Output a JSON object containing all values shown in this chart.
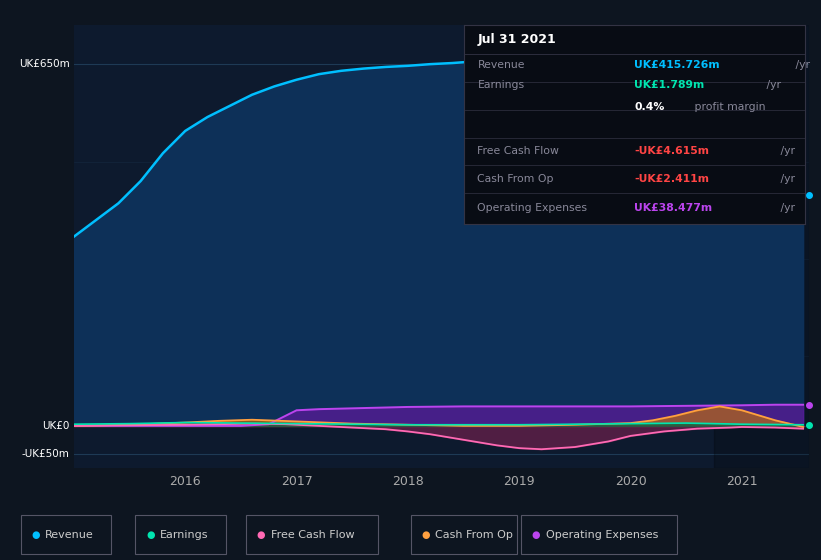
{
  "bg_color": "#0d1520",
  "plot_bg_color": "#0d1a2e",
  "revenue_color": "#00bfff",
  "revenue_fill": "#0d2a45",
  "earnings_color": "#00e5b0",
  "fcf_color": "#ff69b4",
  "cfo_color": "#ffa040",
  "oe_color": "#bb44ee",
  "revenue": {
    "x": [
      2015.0,
      2015.2,
      2015.4,
      2015.6,
      2015.8,
      2016.0,
      2016.2,
      2016.4,
      2016.6,
      2016.8,
      2017.0,
      2017.2,
      2017.4,
      2017.6,
      2017.8,
      2018.0,
      2018.2,
      2018.4,
      2018.6,
      2018.8,
      2019.0,
      2019.2,
      2019.4,
      2019.6,
      2019.8,
      2020.0,
      2020.2,
      2020.4,
      2020.6,
      2020.8,
      2021.0,
      2021.2,
      2021.4,
      2021.55
    ],
    "y": [
      340,
      370,
      400,
      440,
      490,
      530,
      555,
      575,
      595,
      610,
      622,
      632,
      638,
      642,
      645,
      647,
      650,
      652,
      655,
      658,
      660,
      658,
      655,
      650,
      645,
      638,
      620,
      595,
      555,
      505,
      450,
      415,
      415,
      415
    ]
  },
  "earnings": {
    "x": [
      2015.0,
      2015.5,
      2016.0,
      2016.5,
      2017.0,
      2017.5,
      2018.0,
      2018.5,
      2019.0,
      2019.5,
      2020.0,
      2020.5,
      2021.0,
      2021.55
    ],
    "y": [
      3,
      4,
      6,
      5,
      4,
      3,
      2,
      2,
      2,
      3,
      4,
      5,
      3,
      2
    ]
  },
  "free_cash_flow": {
    "x": [
      2015.0,
      2015.5,
      2016.0,
      2016.3,
      2016.6,
      2016.9,
      2017.0,
      2017.2,
      2017.5,
      2017.8,
      2018.0,
      2018.2,
      2018.5,
      2018.8,
      2019.0,
      2019.2,
      2019.5,
      2019.8,
      2020.0,
      2020.3,
      2020.6,
      2020.9,
      2021.0,
      2021.3,
      2021.55
    ],
    "y": [
      0,
      1,
      2,
      3,
      4,
      3,
      2,
      0,
      -3,
      -6,
      -10,
      -15,
      -25,
      -35,
      -40,
      -42,
      -38,
      -28,
      -18,
      -10,
      -5,
      -3,
      -2,
      -3,
      -5
    ]
  },
  "cash_from_op": {
    "x": [
      2015.0,
      2015.5,
      2016.0,
      2016.3,
      2016.6,
      2017.0,
      2017.5,
      2018.0,
      2018.5,
      2019.0,
      2019.5,
      2020.0,
      2020.2,
      2020.4,
      2020.6,
      2020.8,
      2021.0,
      2021.3,
      2021.55
    ],
    "y": [
      0,
      2,
      6,
      9,
      11,
      8,
      4,
      2,
      0,
      0,
      2,
      5,
      10,
      18,
      28,
      35,
      28,
      10,
      -2
    ]
  },
  "operating_expenses": {
    "x": [
      2015.0,
      2015.5,
      2016.0,
      2016.5,
      2016.75,
      2017.0,
      2017.2,
      2017.4,
      2017.6,
      2017.8,
      2018.0,
      2018.5,
      2019.0,
      2019.5,
      2020.0,
      2020.5,
      2021.0,
      2021.3,
      2021.55
    ],
    "y": [
      0,
      0,
      0,
      0,
      3,
      28,
      30,
      31,
      32,
      33,
      34,
      35,
      35,
      35,
      35,
      36,
      37,
      38,
      38
    ]
  },
  "xmin": 2015.0,
  "xmax": 2021.6,
  "ymin": -75,
  "ymax": 720,
  "shade_start": 2020.75,
  "xtick_years": [
    2016,
    2017,
    2018,
    2019,
    2020,
    2021
  ],
  "ytick_vals": [
    650,
    0,
    -50
  ],
  "ytick_labels": [
    "UK£650m",
    "UK£0",
    "-UK£50m"
  ],
  "legend_items": [
    {
      "label": "Revenue",
      "color": "#00bfff"
    },
    {
      "label": "Earnings",
      "color": "#00e5b0"
    },
    {
      "label": "Free Cash Flow",
      "color": "#ff69b4"
    },
    {
      "label": "Cash From Op",
      "color": "#ffa040"
    },
    {
      "label": "Operating Expenses",
      "color": "#bb44ee"
    }
  ],
  "tooltip_bg": "#080c14",
  "tooltip_border": "#333344",
  "tooltip_title": "Jul 31 2021",
  "tooltip_rows": [
    {
      "label": "Revenue",
      "value": "UK£415.726m",
      "suffix": " /yr",
      "value_color": "#00bfff",
      "label_color": "#888899"
    },
    {
      "label": "Earnings",
      "value": "UK£1.789m",
      "suffix": " /yr",
      "value_color": "#00e5b0",
      "label_color": "#888899"
    },
    {
      "label": "",
      "value": "0.4%",
      "suffix": " profit margin",
      "value_color": "#ffffff",
      "label_color": "#888899"
    },
    {
      "label": "Free Cash Flow",
      "value": "-UK£4.615m",
      "suffix": " /yr",
      "value_color": "#ff4444",
      "label_color": "#888899"
    },
    {
      "label": "Cash From Op",
      "value": "-UK£2.411m",
      "suffix": " /yr",
      "value_color": "#ff4444",
      "label_color": "#888899"
    },
    {
      "label": "Operating Expenses",
      "value": "UK£38.477m",
      "suffix": " /yr",
      "value_color": "#bb44ee",
      "label_color": "#888899"
    }
  ]
}
